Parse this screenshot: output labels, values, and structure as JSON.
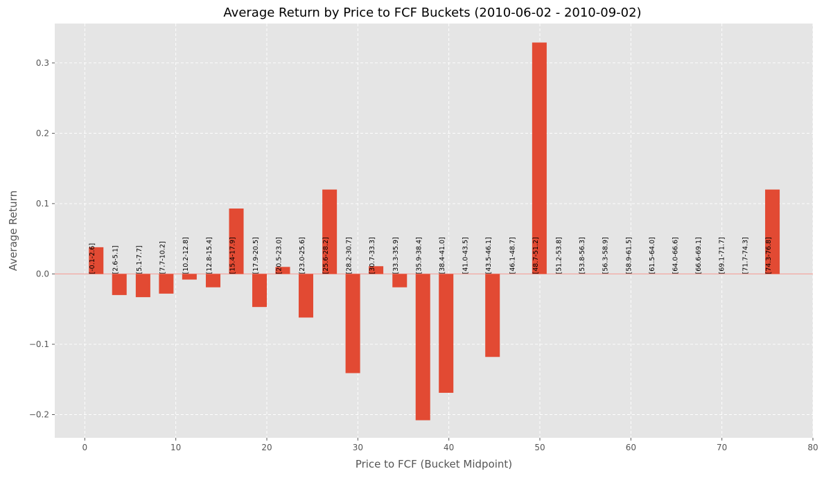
{
  "chart_data": {
    "type": "bar",
    "title": "Average Return by Price to FCF Buckets (2010-06-02 - 2010-09-02)",
    "xlabel": "Price to FCF (Bucket Midpoint)",
    "ylabel": "Average Return",
    "xlim": [
      -3.3,
      80.0
    ],
    "ylim": [
      -0.233,
      0.356
    ],
    "xticks": [
      0,
      10,
      20,
      30,
      40,
      50,
      60,
      70,
      80
    ],
    "yticks": [
      -0.2,
      -0.1,
      0.0,
      0.1,
      0.2,
      0.3
    ],
    "ytick_labels": [
      "−0.2",
      "−0.1",
      "0.0",
      "0.1",
      "0.2",
      "0.3"
    ],
    "grid": true,
    "bar_color": "#E24A33",
    "zero_line_color": "#F4A29A",
    "background_color": "#E5E5E5",
    "bar_width": 1.6,
    "bars": [
      {
        "label": "[-0.1-2.6]",
        "x": 1.25,
        "value": 0.038
      },
      {
        "label": "[2.6-5.1]",
        "x": 3.8,
        "value": -0.03
      },
      {
        "label": "[5.1-7.7]",
        "x": 6.4,
        "value": -0.033
      },
      {
        "label": "[7.7-10.2]",
        "x": 8.95,
        "value": -0.028
      },
      {
        "label": "[10.2-12.8]",
        "x": 11.5,
        "value": -0.008
      },
      {
        "label": "[12.8-15.4]",
        "x": 14.1,
        "value": -0.019
      },
      {
        "label": "[15.4-17.9]",
        "x": 16.65,
        "value": 0.093
      },
      {
        "label": "[17.9-20.5]",
        "x": 19.2,
        "value": -0.047
      },
      {
        "label": "[20.5-23.0]",
        "x": 21.75,
        "value": 0.01
      },
      {
        "label": "[23.0-25.6]",
        "x": 24.3,
        "value": -0.062
      },
      {
        "label": "[25.6-28.2]",
        "x": 26.9,
        "value": 0.12
      },
      {
        "label": "[28.2-30.7]",
        "x": 29.45,
        "value": -0.141
      },
      {
        "label": "[30.7-33.3]",
        "x": 32.0,
        "value": 0.011
      },
      {
        "label": "[33.3-35.9]",
        "x": 34.6,
        "value": -0.019
      },
      {
        "label": "[35.9-38.4]",
        "x": 37.15,
        "value": -0.208
      },
      {
        "label": "[38.4-41.0]",
        "x": 39.7,
        "value": -0.169
      },
      {
        "label": "[41.0-43.5]",
        "x": 42.25,
        "value": 0.0
      },
      {
        "label": "[43.5-46.1]",
        "x": 44.8,
        "value": -0.118
      },
      {
        "label": "[46.1-48.7]",
        "x": 47.4,
        "value": 0.0
      },
      {
        "label": "[48.7-51.2]",
        "x": 49.95,
        "value": 0.329
      },
      {
        "label": "[51.2-53.8]",
        "x": 52.5,
        "value": 0.0
      },
      {
        "label": "[53.8-56.3]",
        "x": 55.05,
        "value": 0.0
      },
      {
        "label": "[56.3-58.9]",
        "x": 57.6,
        "value": 0.0
      },
      {
        "label": "[58.9-61.5]",
        "x": 60.2,
        "value": 0.0
      },
      {
        "label": "[61.5-64.0]",
        "x": 62.75,
        "value": 0.0
      },
      {
        "label": "[64.0-66.6]",
        "x": 65.3,
        "value": 0.0
      },
      {
        "label": "[66.6-69.1]",
        "x": 67.85,
        "value": 0.0
      },
      {
        "label": "[69.1-71.7]",
        "x": 70.4,
        "value": 0.0
      },
      {
        "label": "[71.7-74.3]",
        "x": 73.0,
        "value": 0.0
      },
      {
        "label": "[74.3-76.8]",
        "x": 75.55,
        "value": 0.12
      }
    ]
  }
}
